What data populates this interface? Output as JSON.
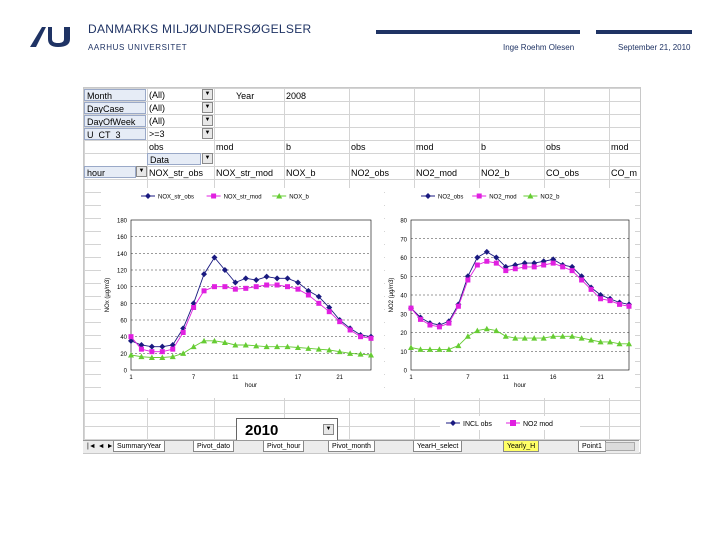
{
  "header": {
    "title": "DANMARKS MILJØUNDERSØGELSER",
    "subtitle": "AARHUS UNIVERSITET",
    "author": "Inge Roehm Olesen",
    "date": "September 21, 2010"
  },
  "pivot": {
    "filters": [
      {
        "label": "Month",
        "value": "(All)"
      },
      {
        "label": "DayCase",
        "value": "(All)"
      },
      {
        "label": "DayOfWeek",
        "value": "(All)"
      },
      {
        "label": "U_CT_3",
        "value": ">=3"
      }
    ],
    "year_label": "Year",
    "year_value": "2008",
    "row4": [
      "obs",
      "mod",
      "b",
      "obs",
      "mod",
      "b",
      "obs",
      "mod"
    ],
    "data_label": "Data",
    "row_header": "hour",
    "columns": [
      "NOX_str_obs",
      "NOX_str_mod",
      "NOX_b",
      "NO2_obs",
      "NO2_mod",
      "NO2_b",
      "CO_obs",
      "CO_m"
    ]
  },
  "year_select": {
    "value": "2010"
  },
  "tabs": [
    {
      "label": "SummaryYear",
      "active": false
    },
    {
      "label": "Pivot_dato",
      "active": false
    },
    {
      "label": "Pivot_hour",
      "active": false
    },
    {
      "label": "Pivot_month",
      "active": false
    },
    {
      "label": "YearH_select",
      "active": false
    },
    {
      "label": "Yearly_H",
      "active": true
    },
    {
      "label": "Point1",
      "active": false
    }
  ],
  "colors": {
    "navy": "#1f3364",
    "obs": "#1a1a80",
    "mod": "#e020e0",
    "b": "#66cc33"
  },
  "chart_data": [
    {
      "type": "line",
      "title": "",
      "xlabel": "hour",
      "ylabel": "NOx (µg/m3)",
      "ylim": [
        0,
        180
      ],
      "yticks": [
        "0",
        "20",
        "40",
        "60",
        "80",
        "100",
        "120",
        "140",
        "160",
        "180"
      ],
      "xticks": [
        "1",
        "7",
        "11",
        "17",
        "21"
      ],
      "legend_position": "top",
      "x": [
        1,
        2,
        3,
        4,
        5,
        6,
        7,
        8,
        9,
        10,
        11,
        12,
        13,
        14,
        15,
        16,
        17,
        18,
        19,
        20,
        21,
        22,
        23,
        24
      ],
      "series": [
        {
          "name": "NOX_str_obs",
          "color": "#1a1a80",
          "marker": "diamond",
          "values": [
            35,
            30,
            28,
            28,
            30,
            50,
            80,
            115,
            135,
            120,
            105,
            110,
            108,
            112,
            110,
            110,
            105,
            95,
            88,
            75,
            60,
            50,
            42,
            40
          ]
        },
        {
          "name": "NOX_str_mod",
          "color": "#e020e0",
          "marker": "square",
          "values": [
            40,
            25,
            22,
            22,
            25,
            45,
            75,
            95,
            100,
            100,
            97,
            98,
            100,
            102,
            102,
            100,
            97,
            90,
            80,
            70,
            58,
            48,
            40,
            38
          ]
        },
        {
          "name": "NOX_b",
          "color": "#66cc33",
          "marker": "triangle",
          "values": [
            18,
            16,
            15,
            15,
            16,
            20,
            28,
            35,
            35,
            33,
            30,
            30,
            29,
            28,
            28,
            28,
            27,
            26,
            25,
            24,
            22,
            20,
            19,
            18
          ]
        }
      ]
    },
    {
      "type": "line",
      "title": "",
      "xlabel": "hour",
      "ylabel": "NO2 (µg/m3)",
      "ylim": [
        0,
        80
      ],
      "yticks": [
        "0",
        "10",
        "20",
        "30",
        "40",
        "50",
        "60",
        "70",
        "80"
      ],
      "xticks": [
        "1",
        "7",
        "11",
        "16",
        "21"
      ],
      "legend_position": "top",
      "x": [
        1,
        2,
        3,
        4,
        5,
        6,
        7,
        8,
        9,
        10,
        11,
        12,
        13,
        14,
        15,
        16,
        17,
        18,
        19,
        20,
        21,
        22,
        23,
        24
      ],
      "series": [
        {
          "name": "NO2_obs",
          "color": "#1a1a80",
          "marker": "diamond",
          "values": [
            33,
            28,
            25,
            24,
            26,
            35,
            50,
            60,
            63,
            60,
            55,
            56,
            57,
            57,
            58,
            59,
            56,
            55,
            50,
            44,
            40,
            38,
            36,
            35
          ]
        },
        {
          "name": "NO2_mod",
          "color": "#e020e0",
          "marker": "square",
          "values": [
            33,
            27,
            24,
            23,
            25,
            34,
            48,
            56,
            58,
            57,
            53,
            54,
            55,
            55,
            56,
            57,
            55,
            53,
            48,
            43,
            38,
            37,
            35,
            34
          ]
        },
        {
          "name": "NO2_b",
          "color": "#66cc33",
          "marker": "triangle",
          "values": [
            12,
            11,
            11,
            11,
            11,
            13,
            18,
            21,
            22,
            21,
            18,
            17,
            17,
            17,
            17,
            18,
            18,
            18,
            17,
            16,
            15,
            15,
            14,
            14
          ]
        }
      ]
    }
  ],
  "bottom_legend": [
    "INCL obs",
    "NO2 mod"
  ]
}
